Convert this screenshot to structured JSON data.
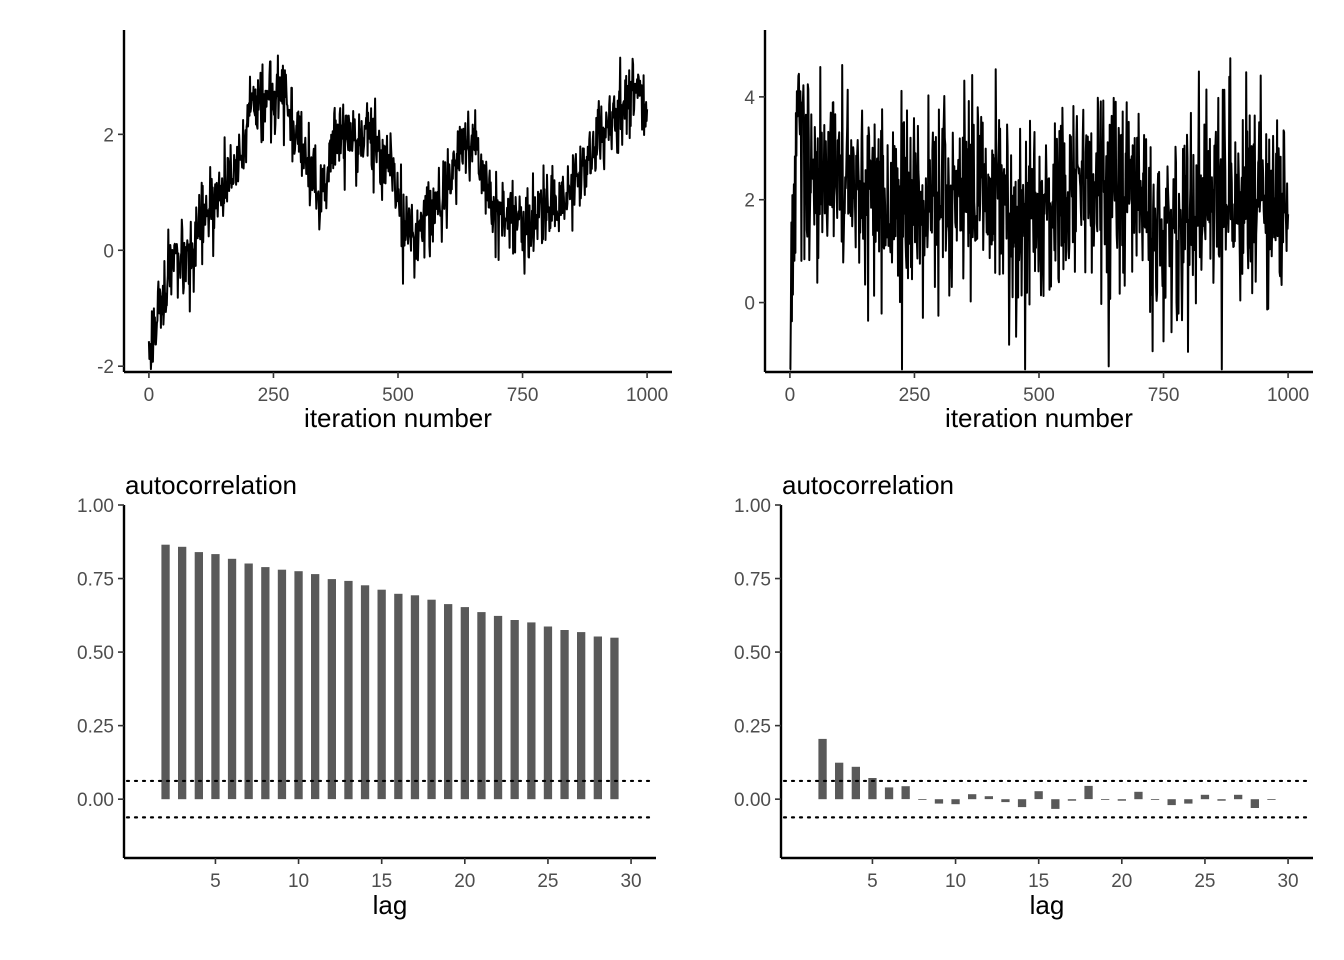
{
  "chart_data": [
    {
      "type": "line",
      "panel": "trace-left",
      "xlabel": "iteration number",
      "ylabel": "",
      "xlim": [
        -50,
        1050
      ],
      "ylim": [
        -2.1,
        3.8
      ],
      "xticks": [
        0,
        250,
        500,
        750,
        1000
      ],
      "xtick_labels": [
        "0",
        "250",
        "500",
        "750",
        "1000"
      ],
      "yticks": [
        -2,
        0,
        2
      ],
      "ytick_labels": [
        "-2",
        "0",
        "2"
      ],
      "grid": false,
      "series": [
        {
          "x": [
            0,
            20,
            50,
            80,
            100,
            130,
            160,
            190,
            210,
            240,
            260,
            290,
            320,
            350,
            380,
            410,
            440,
            470,
            490,
            510,
            530,
            560,
            590,
            620,
            640,
            660,
            690,
            720,
            750,
            780,
            810,
            840,
            870,
            900,
            930,
            960,
            980,
            1000
          ],
          "y": [
            -1.8,
            -1.0,
            -0.2,
            -0.4,
            0.3,
            0.8,
            1.2,
            1.9,
            2.4,
            2.6,
            2.9,
            2.2,
            1.3,
            1.0,
            2.1,
            1.8,
            2.1,
            1.7,
            1.4,
            0.4,
            0.2,
            0.6,
            0.9,
            1.6,
            2.0,
            1.7,
            0.7,
            0.6,
            0.4,
            0.6,
            0.8,
            1.0,
            1.4,
            1.9,
            2.2,
            2.6,
            3.0,
            2.3
          ]
        }
      ]
    },
    {
      "type": "line",
      "panel": "trace-right",
      "xlabel": "iteration number",
      "ylabel": "",
      "xlim": [
        -50,
        1050
      ],
      "ylim": [
        -1.35,
        5.3
      ],
      "xticks": [
        0,
        250,
        500,
        750,
        1000
      ],
      "xtick_labels": [
        "0",
        "250",
        "500",
        "750",
        "1000"
      ],
      "yticks": [
        0,
        2,
        4
      ],
      "ytick_labels": [
        "0",
        "2",
        "4"
      ],
      "grid": false,
      "series": [
        {
          "x": [
            0,
            5,
            15,
            30,
            60,
            100,
            150,
            200,
            250,
            300,
            350,
            400,
            450,
            500,
            550,
            600,
            650,
            700,
            750,
            800,
            860,
            900,
            950,
            1000
          ],
          "y": [
            -0.8,
            1.0,
            4.0,
            3.0,
            2.0,
            2.4,
            2.5,
            1.8,
            1.9,
            2.2,
            2.3,
            2.1,
            1.6,
            1.8,
            2.0,
            2.4,
            2.1,
            2.2,
            1.4,
            2.0,
            2.1,
            1.9,
            2.0,
            2.2
          ]
        }
      ]
    },
    {
      "type": "bar",
      "panel": "acf-left",
      "title": "autocorrelation",
      "xlabel": "lag",
      "ylabel": "",
      "xlim": [
        -0.5,
        31.5
      ],
      "ylim": [
        -0.2,
        1.0
      ],
      "xticks": [
        5,
        10,
        15,
        20,
        25,
        30
      ],
      "xtick_labels": [
        "5",
        "10",
        "15",
        "20",
        "25",
        "30"
      ],
      "yticks": [
        0,
        0.25,
        0.5,
        0.75,
        1.0
      ],
      "ytick_labels": [
        "0.00",
        "0.25",
        "0.50",
        "0.75",
        "1.00"
      ],
      "conf_band": [
        -0.062,
        0.062
      ],
      "grid": false,
      "categories": [
        2,
        3,
        4,
        5,
        6,
        7,
        8,
        9,
        10,
        11,
        12,
        13,
        14,
        15,
        16,
        17,
        18,
        19,
        20,
        21,
        22,
        23,
        24,
        25,
        26,
        27,
        28,
        29
      ],
      "values": [
        0.865,
        0.858,
        0.84,
        0.833,
        0.817,
        0.801,
        0.789,
        0.78,
        0.775,
        0.765,
        0.748,
        0.742,
        0.727,
        0.712,
        0.698,
        0.693,
        0.678,
        0.663,
        0.653,
        0.636,
        0.623,
        0.609,
        0.601,
        0.587,
        0.575,
        0.568,
        0.553,
        0.549
      ]
    },
    {
      "type": "bar",
      "panel": "acf-right",
      "title": "autocorrelation",
      "xlabel": "lag",
      "ylabel": "",
      "xlim": [
        -0.5,
        31.5
      ],
      "ylim": [
        -0.2,
        1.0
      ],
      "xticks": [
        5,
        10,
        15,
        20,
        25,
        30
      ],
      "xtick_labels": [
        "5",
        "10",
        "15",
        "20",
        "25",
        "30"
      ],
      "yticks": [
        0,
        0.25,
        0.5,
        0.75,
        1.0
      ],
      "ytick_labels": [
        "0.00",
        "0.25",
        "0.50",
        "0.75",
        "1.00"
      ],
      "conf_band": [
        -0.062,
        0.062
      ],
      "grid": false,
      "categories": [
        2,
        3,
        4,
        5,
        6,
        7,
        8,
        9,
        10,
        11,
        12,
        13,
        14,
        15,
        16,
        17,
        18,
        19,
        20,
        21,
        22,
        23,
        24,
        25,
        26,
        27,
        28,
        29
      ],
      "values": [
        0.205,
        0.124,
        0.11,
        0.072,
        0.04,
        0.044,
        0.0,
        -0.015,
        -0.017,
        0.017,
        0.01,
        -0.01,
        -0.027,
        0.027,
        -0.033,
        -0.005,
        0.045,
        0.0,
        -0.005,
        0.025,
        0.0,
        -0.02,
        -0.015,
        0.015,
        -0.005,
        0.015,
        -0.03,
        0.0
      ]
    }
  ]
}
